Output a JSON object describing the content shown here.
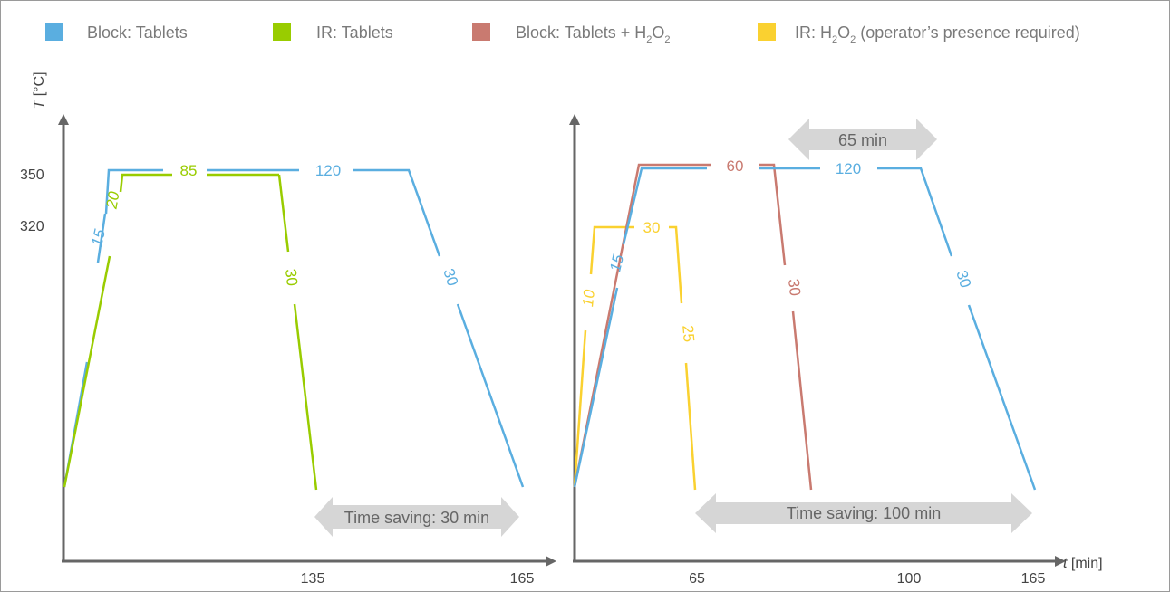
{
  "colors": {
    "block_tablets": "#5aaee0",
    "ir_tablets": "#99cc00",
    "block_tablets_h2o2": "#c97a70",
    "ir_h2o2": "#fad130",
    "axis": "#666666",
    "arrow": "#d6d6d6"
  },
  "legend": [
    {
      "label": "Block: Tablets",
      "color": "#5aaee0"
    },
    {
      "label": "IR: Tablets",
      "color": "#99cc00"
    },
    {
      "label_parts": [
        "Block: Tablets + H",
        "2",
        "O",
        "2"
      ],
      "color": "#c97a70"
    },
    {
      "label_parts": [
        "IR: H",
        "2",
        "O",
        "2",
        " (operator’s presence required)"
      ],
      "color": "#fad130"
    }
  ],
  "axes": {
    "ylabel_var": "T",
    "ylabel_unit": " [°C]",
    "xlabel_var": "t",
    "xlabel_unit": " [min]"
  },
  "chart_data": [
    {
      "type": "line",
      "y_ticks": [
        "350",
        "320"
      ],
      "x_ticks": [
        "135",
        "165"
      ],
      "series": [
        {
          "name": "Block: Tablets",
          "color": "#5aaee0",
          "points": [
            [
              0,
              25
            ],
            [
              15,
              350
            ],
            [
              135,
              350
            ],
            [
              165,
              25
            ]
          ],
          "segment_labels": [
            "15",
            "120",
            "30"
          ]
        },
        {
          "name": "IR: Tablets",
          "color": "#99cc00",
          "points": [
            [
              0,
              25
            ],
            [
              20,
              345
            ],
            [
              105,
              345
            ],
            [
              135,
              25
            ]
          ],
          "segment_labels": [
            "20",
            "85",
            "30"
          ]
        }
      ],
      "annotations": [
        {
          "text": "Time saving: 30 min"
        }
      ]
    },
    {
      "type": "line",
      "x_ticks": [
        "65",
        "100",
        "165"
      ],
      "series": [
        {
          "name": "Block: Tablets",
          "color": "#5aaee0",
          "points": [
            [
              0,
              25
            ],
            [
              15,
              350
            ],
            [
              135,
              350
            ],
            [
              165,
              25
            ]
          ],
          "segment_labels": [
            "15",
            "120",
            "30"
          ]
        },
        {
          "name": "Block: Tablets + H2O2",
          "color": "#c97a70",
          "points": [
            [
              0,
              25
            ],
            [
              15,
              352
            ],
            [
              75,
              352
            ],
            [
              105,
              25
            ]
          ],
          "segment_labels": [
            "60",
            "30"
          ]
        },
        {
          "name": "IR: H2O2",
          "color": "#fad130",
          "points": [
            [
              0,
              25
            ],
            [
              10,
              320
            ],
            [
              40,
              320
            ],
            [
              65,
              25
            ]
          ],
          "segment_labels": [
            "10",
            "30",
            "25"
          ]
        }
      ],
      "annotations": [
        {
          "text": "65 min"
        },
        {
          "text": "Time saving: 100 min"
        }
      ]
    }
  ]
}
